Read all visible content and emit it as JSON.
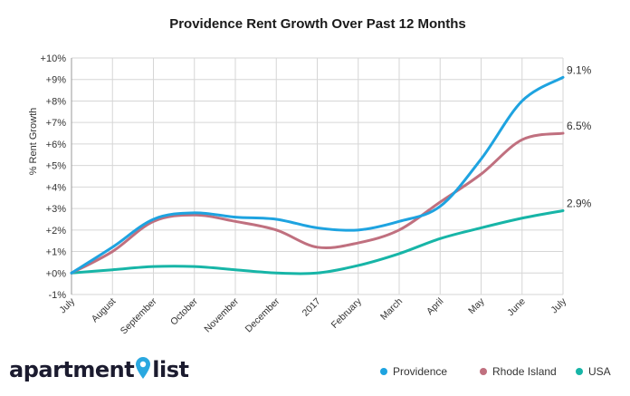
{
  "brand": {
    "name_left": "apartment",
    "name_right": "list",
    "pin_color": "#2aa8e0"
  },
  "chart_data": {
    "type": "line",
    "title": "Providence Rent Growth Over Past 12 Months",
    "xlabel": "",
    "ylabel": "% Rent Growth",
    "categories": [
      "July",
      "August",
      "September",
      "October",
      "November",
      "December",
      "2017",
      "February",
      "March",
      "April",
      "May",
      "June",
      "July"
    ],
    "y_ticks": [
      "-1%",
      "+0%",
      "+1%",
      "+2%",
      "+3%",
      "+4%",
      "+5%",
      "+6%",
      "+7%",
      "+8%",
      "+9%",
      "+10%"
    ],
    "ylim": [
      -1,
      10
    ],
    "grid": true,
    "legend_position": "bottom-right",
    "series": [
      {
        "name": "Providence",
        "color": "#1ea3e0",
        "values": [
          0.0,
          1.2,
          2.5,
          2.8,
          2.6,
          2.5,
          2.1,
          2.0,
          2.4,
          3.1,
          5.3,
          8.0,
          9.1
        ],
        "end_label": "9.1%"
      },
      {
        "name": "Rhode Island",
        "color": "#c0707f",
        "values": [
          0.0,
          1.0,
          2.4,
          2.7,
          2.4,
          2.0,
          1.2,
          1.4,
          2.0,
          3.3,
          4.6,
          6.2,
          6.5
        ],
        "end_label": "6.5%"
      },
      {
        "name": "USA",
        "color": "#17b5a7",
        "values": [
          0.0,
          0.15,
          0.3,
          0.3,
          0.15,
          0.0,
          0.0,
          0.35,
          0.9,
          1.6,
          2.1,
          2.55,
          2.9
        ],
        "end_label": "2.9%"
      }
    ]
  }
}
